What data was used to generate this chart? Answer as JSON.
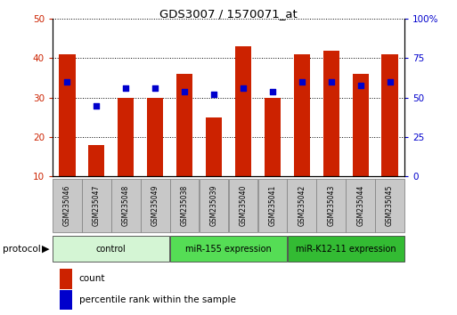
{
  "title": "GDS3007 / 1570071_at",
  "samples": [
    "GSM235046",
    "GSM235047",
    "GSM235048",
    "GSM235049",
    "GSM235038",
    "GSM235039",
    "GSM235040",
    "GSM235041",
    "GSM235042",
    "GSM235043",
    "GSM235044",
    "GSM235045"
  ],
  "counts": [
    41,
    18,
    30,
    30,
    36,
    25,
    43,
    30,
    41,
    42,
    36,
    41
  ],
  "percentile_ranks": [
    60,
    45,
    56,
    56,
    54,
    52,
    56,
    54,
    60,
    60,
    58,
    60
  ],
  "groups": [
    {
      "label": "control",
      "start": 0,
      "end": 4,
      "color": "#d4f5d4"
    },
    {
      "label": "miR-155 expression",
      "start": 4,
      "end": 8,
      "color": "#55dd55"
    },
    {
      "label": "miR-K12-11 expression",
      "start": 8,
      "end": 12,
      "color": "#33bb33"
    }
  ],
  "ylim_left": [
    10,
    50
  ],
  "ylim_right": [
    0,
    100
  ],
  "yticks_left": [
    10,
    20,
    30,
    40,
    50
  ],
  "yticks_right": [
    0,
    25,
    50,
    75,
    100
  ],
  "bar_color": "#cc2200",
  "dot_color": "#0000cc",
  "bar_width": 0.55,
  "bg_color": "#ffffff",
  "sample_bg": "#c8c8c8",
  "legend_count_label": "count",
  "legend_pct_label": "percentile rank within the sample"
}
